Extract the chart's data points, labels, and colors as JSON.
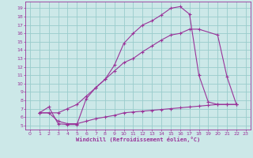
{
  "xlabel": "Windchill (Refroidissement éolien,°C)",
  "bg_color": "#cce8e8",
  "grid_color": "#99cccc",
  "line_color": "#993399",
  "xlim": [
    -0.5,
    23.5
  ],
  "ylim": [
    4.5,
    19.8
  ],
  "yticks": [
    5,
    6,
    7,
    8,
    9,
    10,
    11,
    12,
    13,
    14,
    15,
    16,
    17,
    18,
    19
  ],
  "xticks": [
    0,
    1,
    2,
    3,
    4,
    5,
    6,
    7,
    8,
    9,
    10,
    11,
    12,
    13,
    14,
    15,
    16,
    17,
    18,
    19,
    20,
    21,
    22,
    23
  ],
  "curve1_x": [
    1,
    2,
    3,
    4,
    5,
    6,
    7,
    8,
    9,
    10,
    11,
    12,
    13,
    14,
    15,
    16,
    17,
    18,
    19,
    20,
    21,
    22
  ],
  "curve1_y": [
    6.5,
    7.2,
    5.2,
    5.1,
    5.1,
    8.2,
    9.5,
    10.5,
    12.2,
    14.8,
    16.0,
    17.0,
    17.5,
    18.2,
    19.0,
    19.2,
    18.3,
    11.0,
    7.8,
    7.5,
    7.5,
    7.5
  ],
  "curve2_x": [
    1,
    3,
    4,
    5,
    6,
    7,
    8,
    9,
    10,
    11,
    12,
    13,
    14,
    15,
    16,
    17,
    18,
    20,
    21,
    22
  ],
  "curve2_y": [
    6.5,
    6.5,
    7.0,
    7.5,
    8.5,
    9.5,
    10.5,
    11.5,
    12.5,
    13.0,
    13.8,
    14.5,
    15.2,
    15.8,
    16.0,
    16.5,
    16.5,
    15.8,
    10.8,
    7.5
  ],
  "curve3_x": [
    1,
    2,
    3,
    4,
    5,
    6,
    7,
    8,
    9,
    10,
    11,
    12,
    13,
    14,
    15,
    16,
    17,
    18,
    19,
    20,
    21,
    22
  ],
  "curve3_y": [
    6.5,
    6.5,
    5.5,
    5.2,
    5.2,
    5.5,
    5.8,
    6.0,
    6.2,
    6.5,
    6.6,
    6.7,
    6.8,
    6.9,
    7.0,
    7.1,
    7.2,
    7.3,
    7.4,
    7.5,
    7.5,
    7.5
  ]
}
